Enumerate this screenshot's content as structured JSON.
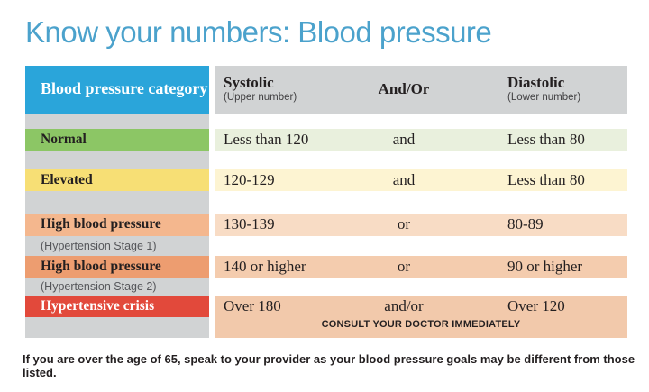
{
  "title": "Know your numbers: Blood pressure",
  "colors": {
    "title_blue": "#4ba2cc",
    "header_blue": "#2aa5da",
    "gray": "#d1d3d4",
    "text_dark": "#231f20",
    "sub_text": "#55565a",
    "normal_strip": "#8cc665",
    "normal_band": "#e9f0dd",
    "elevated_strip": "#f7df75",
    "elevated_band": "#fdf4d2",
    "stage1_strip": "#f4b78e",
    "stage1_band": "#f8dcc5",
    "stage2_strip": "#ed9d70",
    "stage2_band": "#f4ccae",
    "crisis_strip": "#e2493b",
    "crisis_band": "#f2c9ab"
  },
  "table": {
    "header": {
      "category": "Blood pressure category",
      "systolic": "Systolic",
      "systolic_sub": "(Upper number)",
      "andor": "And/Or",
      "diastolic": "Diastolic",
      "diastolic_sub": "(Lower number)"
    },
    "rows": [
      {
        "category": "Normal",
        "systolic": "Less than 120",
        "andor": "and",
        "diastolic": "Less than 80"
      },
      {
        "category": "Elevated",
        "systolic": "120-129",
        "andor": "and",
        "diastolic": "Less than 80"
      },
      {
        "category": "High blood pressure",
        "sub": "(Hypertension Stage 1)",
        "systolic": "130-139",
        "andor": "or",
        "diastolic": "80-89"
      },
      {
        "category": "High blood pressure",
        "sub": "(Hypertension Stage 2)",
        "systolic": "140 or higher",
        "andor": "or",
        "diastolic": "90 or higher"
      },
      {
        "category": "Hypertensive crisis",
        "systolic": "Over 180",
        "andor": "and/or",
        "diastolic": "Over 120",
        "note": "CONSULT YOUR DOCTOR IMMEDIATELY"
      }
    ]
  },
  "footer": "If you are over the age of 65, speak to your provider as your blood pressure goals may be different from those listed.",
  "chart_data": {
    "type": "table",
    "title": "Know your numbers: Blood pressure",
    "columns": [
      "Blood pressure category",
      "Systolic (Upper number)",
      "And/Or",
      "Diastolic (Lower number)"
    ],
    "rows": [
      [
        "Normal",
        "Less than 120",
        "and",
        "Less than 80"
      ],
      [
        "Elevated",
        "120-129",
        "and",
        "Less than 80"
      ],
      [
        "High blood pressure (Hypertension Stage 1)",
        "130-139",
        "or",
        "80-89"
      ],
      [
        "High blood pressure (Hypertension Stage 2)",
        "140 or higher",
        "or",
        "90 or higher"
      ],
      [
        "Hypertensive crisis",
        "Over 180",
        "and/or",
        "Over 120"
      ]
    ],
    "note": "CONSULT YOUR DOCTOR IMMEDIATELY"
  }
}
